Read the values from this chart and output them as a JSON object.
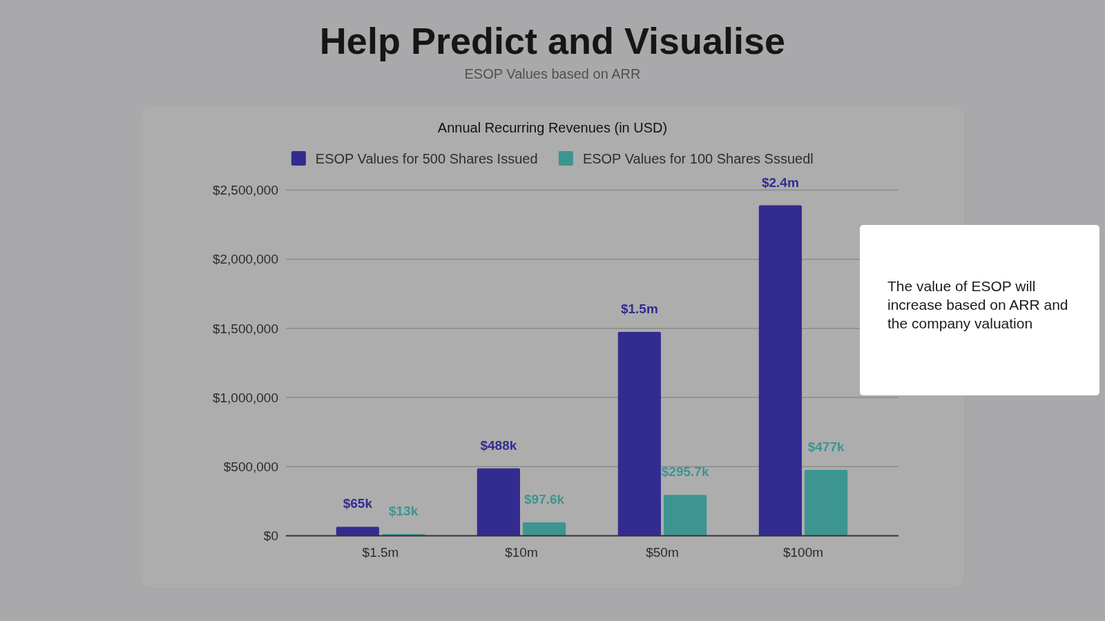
{
  "chart_data": {
    "type": "bar",
    "title": "Help Predict and Visualise",
    "subtitle": "ESOP Values based on ARR",
    "annotations": [
      "Annual Recurring Revenues (in USD)",
      "The value of ESOP will increase based on ARR and the company valuation"
    ],
    "categories": [
      "$1.5m",
      "$10m",
      "$50m",
      "$100m"
    ],
    "series": [
      {
        "name": "ESOP Values for 500 Shares Issued",
        "color": "#332c90",
        "values": [
          65000,
          488000,
          1475000,
          2390000
        ],
        "value_labels": [
          "$65k",
          "$488k",
          "$1.5m",
          "$2.4m"
        ]
      },
      {
        "name": "ESOP Values for 100 Shares Sssuedl",
        "color": "#3d9591",
        "values": [
          13000,
          97600,
          295700,
          477000
        ],
        "value_labels": [
          "$13k",
          "$97.6k",
          "$295.7k",
          "$477k"
        ]
      }
    ],
    "ylim": [
      0,
      2500000
    ],
    "yticks": [
      {
        "value": 0,
        "label": "$0"
      },
      {
        "value": 500000,
        "label": "$500,000"
      },
      {
        "value": 1000000,
        "label": "$1,000,000"
      },
      {
        "value": 1500000,
        "label": "$1,500,000"
      },
      {
        "value": 2000000,
        "label": "$2,000,000"
      },
      {
        "value": 2500000,
        "label": "$2,500,000"
      }
    ],
    "grid": "y",
    "legend": "top"
  }
}
